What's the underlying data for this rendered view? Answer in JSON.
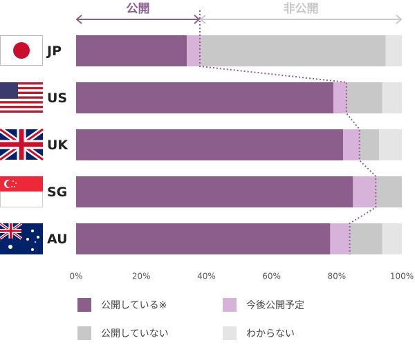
{
  "chart_data": {
    "type": "stacked-bar-horizontal",
    "categories": [
      "JP",
      "US",
      "UK",
      "SG",
      "AU"
    ],
    "series": [
      {
        "name": "公開している※",
        "color": "#8b5e8c",
        "values": [
          34,
          79,
          82,
          85,
          78
        ]
      },
      {
        "name": "今後公開予定",
        "color": "#d7b3d9",
        "values": [
          4,
          4,
          5,
          7,
          6
        ]
      },
      {
        "name": "公開していない",
        "color": "#c8c8c8",
        "values": [
          57,
          11,
          6,
          8,
          10
        ]
      },
      {
        "name": "わからない",
        "color": "#e5e5e5",
        "values": [
          5,
          6,
          7,
          0,
          6
        ]
      }
    ],
    "xlim": [
      0,
      100
    ],
    "xticks": [
      {
        "value": 0,
        "label": "0%"
      },
      {
        "value": 20,
        "label": "20%"
      },
      {
        "value": 40,
        "label": "40%"
      },
      {
        "value": 60,
        "label": "60%"
      },
      {
        "value": 80,
        "label": "80%"
      },
      {
        "value": 100,
        "label": "100%"
      }
    ],
    "annotations": [
      "公開",
      "非公開"
    ]
  }
}
